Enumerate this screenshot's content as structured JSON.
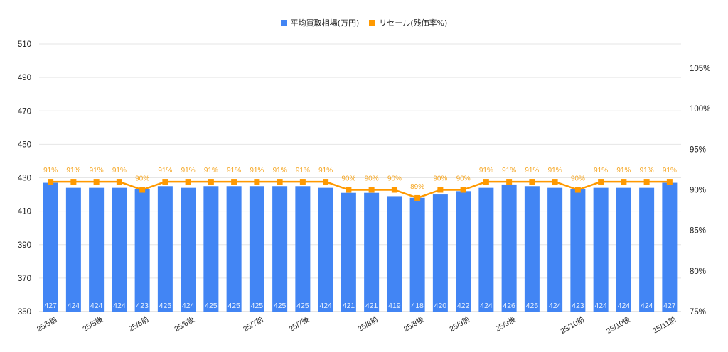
{
  "chart_data": {
    "type": "bar",
    "title": "",
    "xlabel": "",
    "ylabel": "",
    "y2label": "",
    "ylim": [
      350,
      510
    ],
    "yticks": [
      350,
      370,
      390,
      410,
      430,
      450,
      470,
      490,
      510
    ],
    "y2lim": [
      75,
      107.5
    ],
    "y2ticks": [
      "75%",
      "80%",
      "85%",
      "90%",
      "95%",
      "100%",
      "105%"
    ],
    "grid": true,
    "legend_position": "top",
    "categories_visible": [
      {
        "index": 0,
        "label": "25/5前"
      },
      {
        "index": 2,
        "label": "25/5後"
      },
      {
        "index": 4,
        "label": "25/6前"
      },
      {
        "index": 6,
        "label": "25/6後"
      },
      {
        "index": 9,
        "label": "25/7前"
      },
      {
        "index": 11,
        "label": "25/7後"
      },
      {
        "index": 14,
        "label": "25/8前"
      },
      {
        "index": 16,
        "label": "25/8後"
      },
      {
        "index": 18,
        "label": "25/9前"
      },
      {
        "index": 20,
        "label": "25/9後"
      },
      {
        "index": 23,
        "label": "25/10前"
      },
      {
        "index": 25,
        "label": "25/10後"
      },
      {
        "index": 27,
        "label": "25/11前"
      }
    ],
    "series": [
      {
        "name": "平均買取相場(万円)",
        "type": "bar",
        "axis": "left",
        "color": "#4285f4",
        "values": [
          427,
          424,
          424,
          424,
          423,
          425,
          424,
          425,
          425,
          425,
          425,
          425,
          424,
          421,
          421,
          419,
          418,
          420,
          422,
          424,
          426,
          425,
          424,
          423,
          424,
          424,
          424,
          427
        ]
      },
      {
        "name": "リセール(残価率%)",
        "type": "line",
        "axis": "right",
        "color": "#ff9900",
        "values": [
          91,
          91,
          91,
          91,
          90,
          91,
          91,
          91,
          91,
          91,
          91,
          91,
          91,
          90,
          90,
          90,
          89,
          90,
          90,
          91,
          91,
          91,
          91,
          90,
          91,
          91,
          91,
          91
        ]
      }
    ]
  },
  "legend": {
    "items": [
      {
        "label": "平均買取相場(万円)",
        "color": "#4285f4"
      },
      {
        "label": "リセール(残価率%)",
        "color": "#ff9900"
      }
    ]
  }
}
